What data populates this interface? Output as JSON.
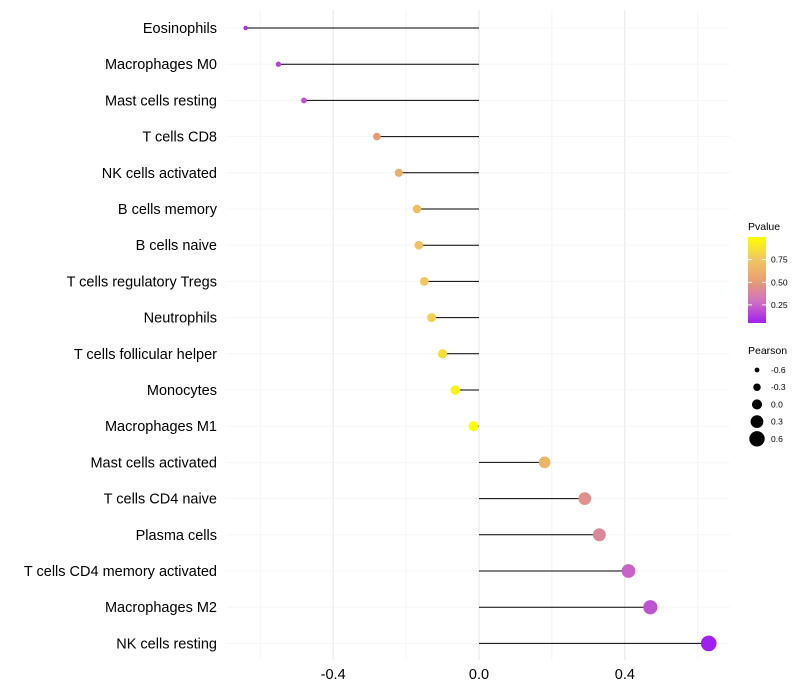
{
  "chart_data": {
    "type": "lollipop",
    "orientation": "horizontal",
    "xlabel": "",
    "ylabel": "",
    "xlim": [
      -0.64,
      0.64
    ],
    "xticks": [
      -0.4,
      0.0,
      0.4
    ],
    "xtick_labels": [
      "-0.4",
      "0.0",
      "0.4"
    ],
    "grid": true,
    "categories": [
      "Eosinophils",
      "Macrophages M0",
      "Mast cells resting",
      "T cells CD8",
      "NK cells activated",
      "B cells memory",
      "B cells naive",
      "T cells regulatory  Tregs",
      "Neutrophils",
      "T cells follicular helper",
      "Monocytes",
      "Macrophages M1",
      "Mast cells activated",
      "T cells CD4 naive",
      "Plasma cells",
      "T cells CD4 memory activated",
      "Macrophages M2",
      "NK cells resting"
    ],
    "values": [
      -0.64,
      -0.55,
      -0.48,
      -0.28,
      -0.22,
      -0.17,
      -0.165,
      -0.15,
      -0.13,
      -0.1,
      -0.065,
      -0.015,
      0.18,
      0.29,
      0.33,
      0.41,
      0.47,
      0.63
    ],
    "pvalues": [
      0.1,
      0.15,
      0.2,
      0.5,
      0.6,
      0.7,
      0.72,
      0.75,
      0.8,
      0.85,
      0.95,
      1.0,
      0.65,
      0.45,
      0.4,
      0.25,
      0.2,
      0.05
    ],
    "color_legend": {
      "title": "Pvalue",
      "ticks": [
        0.75,
        0.5,
        0.25
      ],
      "tick_labels": [
        "0.75",
        "0.50",
        "0.25"
      ],
      "range": [
        0.05,
        1.0
      ],
      "colors": [
        "#a020f0",
        "#d070c0",
        "#e8a070",
        "#f0c860",
        "#ffff00"
      ]
    },
    "size_legend": {
      "title": "Pearson",
      "values": [
        -0.6,
        -0.3,
        0.0,
        0.3,
        0.6
      ],
      "labels": [
        "-0.6",
        "-0.3",
        "0.0",
        "0.3",
        "0.6"
      ]
    }
  }
}
